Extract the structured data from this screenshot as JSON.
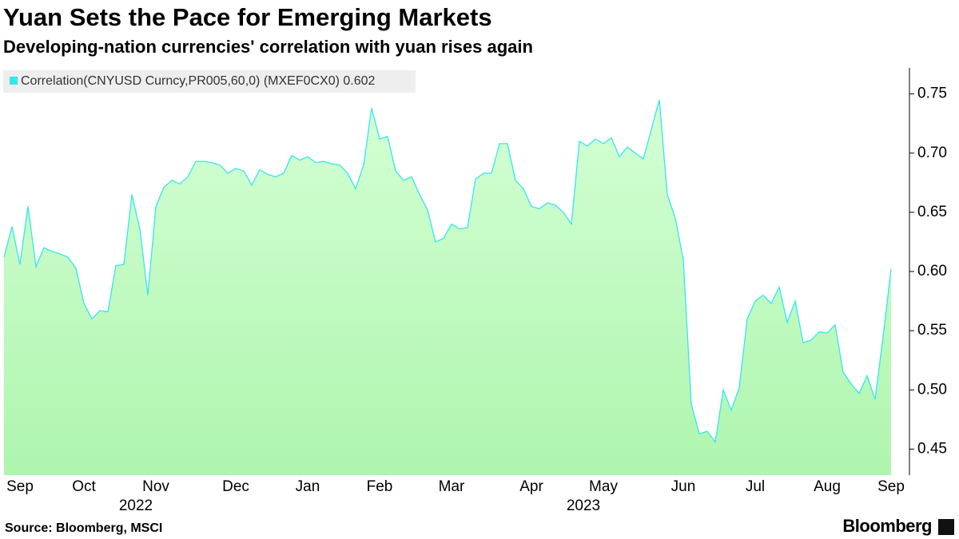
{
  "chart_data": {
    "type": "area",
    "title": "Yuan Sets the Pace for Emerging Markets",
    "subtitle": "Developing-nation currencies' correlation with yuan rises again",
    "source": "Source: Bloomberg, MSCI",
    "brand": "Bloomberg",
    "categories": [
      null,
      null,
      "Sep",
      null,
      null,
      null,
      null,
      null,
      null,
      null,
      "Oct",
      null,
      null,
      null,
      null,
      null,
      null,
      null,
      null,
      "Nov",
      null,
      null,
      null,
      null,
      null,
      null,
      null,
      null,
      null,
      "Dec",
      null,
      null,
      null,
      null,
      null,
      null,
      null,
      null,
      "Jan",
      null,
      null,
      null,
      null,
      null,
      null,
      null,
      null,
      "Feb",
      null,
      null,
      null,
      null,
      null,
      null,
      null,
      null,
      "Mar",
      null,
      null,
      null,
      null,
      null,
      null,
      null,
      null,
      null,
      "Apr",
      null,
      null,
      null,
      null,
      null,
      null,
      null,
      null,
      "May",
      null,
      null,
      null,
      null,
      null,
      null,
      null,
      null,
      null,
      "Jun",
      null,
      null,
      null,
      null,
      null,
      null,
      null,
      null,
      "Jul",
      null,
      null,
      null,
      null,
      null,
      null,
      null,
      null,
      "Aug",
      null,
      null,
      null,
      null,
      null,
      null,
      null,
      "Sep"
    ],
    "years": [
      "2022",
      "2023"
    ],
    "series": [
      {
        "name": "Correlation(CNYUSD Curncy,PR005,60,0) (MXEF0CX0) 0.602",
        "color": "#33e6f2",
        "values": [
          0.612,
          0.638,
          0.606,
          0.655,
          0.604,
          0.62,
          0.617,
          0.615,
          0.612,
          0.603,
          0.573,
          0.56,
          0.567,
          0.566,
          0.605,
          0.606,
          0.665,
          0.636,
          0.58,
          0.655,
          0.671,
          0.677,
          0.674,
          0.68,
          0.693,
          0.693,
          0.692,
          0.69,
          0.683,
          0.687,
          0.685,
          0.673,
          0.686,
          0.682,
          0.68,
          0.683,
          0.698,
          0.694,
          0.697,
          0.692,
          0.693,
          0.691,
          0.69,
          0.683,
          0.67,
          0.69,
          0.738,
          0.712,
          0.714,
          0.685,
          0.677,
          0.68,
          0.665,
          0.652,
          0.625,
          0.628,
          0.64,
          0.636,
          0.637,
          0.678,
          0.683,
          0.683,
          0.708,
          0.708,
          0.677,
          0.67,
          0.655,
          0.653,
          0.658,
          0.656,
          0.65,
          0.64,
          0.71,
          0.706,
          0.712,
          0.708,
          0.713,
          0.697,
          0.705,
          0.7,
          0.695,
          0.72,
          0.745,
          0.665,
          0.645,
          0.61,
          0.488,
          0.463,
          0.465,
          0.456,
          0.5,
          0.483,
          0.502,
          0.56,
          0.575,
          0.58,
          0.573,
          0.587,
          0.557,
          0.575,
          0.54,
          0.542,
          0.549,
          0.548,
          0.555,
          0.515,
          0.505,
          0.497,
          0.512,
          0.492,
          0.545,
          0.602
        ]
      }
    ],
    "ylim": [
      0.428,
      0.772
    ],
    "yticks": [
      0.45,
      {
        "value": 0.5,
        "label": "0.50"
      },
      0.55,
      {
        "value": 0.6,
        "label": "0.60"
      },
      0.65,
      {
        "value": 0.7,
        "label": "0.70"
      },
      0.75
    ]
  }
}
